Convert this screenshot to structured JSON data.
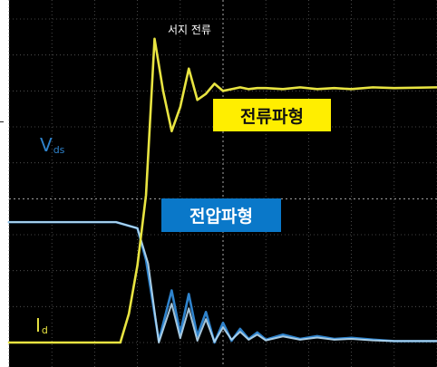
{
  "chart_data": {
    "type": "line",
    "title": "",
    "xlabel": "",
    "ylabel": "",
    "grid": true,
    "annotations": {
      "surge_current": "서지 전류",
      "current_waveform": "전류파형",
      "voltage_waveform": "전압파형",
      "vds_main": "V",
      "vds_sub": "ds",
      "id_main": "I",
      "id_sub": "d"
    },
    "series": [
      {
        "name": "V",
        "color": "#2f83cc",
        "x": [
          0,
          2.5,
          3.0,
          3.2,
          3.5,
          3.8,
          4.0,
          4.2,
          4.4,
          4.6,
          4.8,
          5.0,
          5.2,
          5.4,
          5.6,
          5.8,
          6.0,
          6.4,
          6.8,
          7.2,
          7.6,
          8.0,
          8.5,
          9.0,
          10.0
        ],
        "y": [
          3.35,
          3.35,
          3.18,
          2.3,
          0.05,
          1.45,
          0.25,
          1.35,
          0.18,
          0.85,
          0.0,
          0.55,
          0.05,
          0.38,
          0.1,
          0.28,
          0.08,
          0.22,
          0.1,
          0.18,
          0.1,
          0.13,
          0.08,
          0.04,
          0.04
        ]
      },
      {
        "name": "",
        "color": "#b7d9ef",
        "x": [
          0,
          2.5,
          3.0,
          3.25,
          3.5,
          3.8,
          4.0,
          4.2,
          4.4,
          4.6,
          4.8,
          5.0,
          5.2,
          5.4,
          5.6,
          5.8,
          6.0,
          6.4,
          6.8,
          7.2,
          7.6,
          8.0,
          8.5,
          9.0,
          10.0
        ],
        "y": [
          3.35,
          3.35,
          3.18,
          2.2,
          0.0,
          1.08,
          0.12,
          0.95,
          0.05,
          0.65,
          0.02,
          0.42,
          0.08,
          0.3,
          0.08,
          0.22,
          0.06,
          0.17,
          0.08,
          0.14,
          0.08,
          0.1,
          0.06,
          0.04,
          0.04
        ]
      },
      {
        "name": "I",
        "color": "#e8e441",
        "x": [
          0,
          2.6,
          2.8,
          3.0,
          3.2,
          3.4,
          3.6,
          3.8,
          4.0,
          4.2,
          4.4,
          4.6,
          4.8,
          5.0,
          5.2,
          5.4,
          5.6,
          5.8,
          6.0,
          6.4,
          6.8,
          7.2,
          7.6,
          8.0,
          8.5,
          9.0,
          10.0
        ],
        "y": [
          0.0,
          0.0,
          0.8,
          2.15,
          4.1,
          8.45,
          7.0,
          5.88,
          6.55,
          7.62,
          6.75,
          6.92,
          7.2,
          7.0,
          7.05,
          7.1,
          7.05,
          7.08,
          7.08,
          7.05,
          7.1,
          7.05,
          7.08,
          7.05,
          7.1,
          7.08,
          7.1
        ]
      }
    ],
    "xlim": [
      0,
      10
    ],
    "ylim": [
      0,
      9
    ],
    "colors": {
      "background": "#000000",
      "grid": "#5b5b5b",
      "dashed_grid": "#a9a9a9",
      "yellow": "#e8e441",
      "blue": "#2f83cc",
      "light_blue": "#b7d9ef",
      "current_box": "#ffee00",
      "voltage_box": "#0a78c9",
      "surge_text": "#ffffff"
    }
  }
}
